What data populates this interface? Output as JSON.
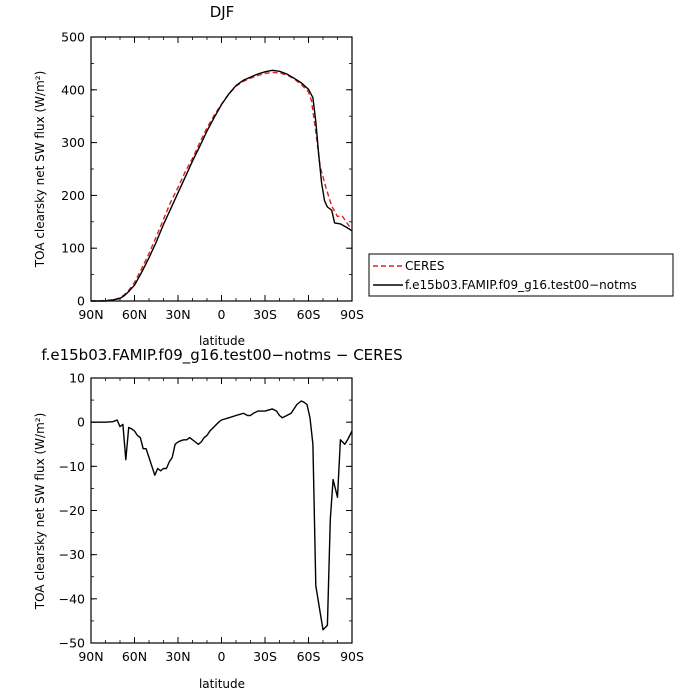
{
  "chart_data": [
    {
      "type": "line",
      "title": "DJF",
      "xlabel": "latitude",
      "ylabel": "TOA clearsky net SW flux (W/m²)",
      "x_tick_labels": [
        "90N",
        "60N",
        "30N",
        "0",
        "30S",
        "60S",
        "90S"
      ],
      "x_tick_values": [
        90,
        60,
        30,
        0,
        -30,
        -60,
        -90
      ],
      "y_ticks": [
        0,
        100,
        200,
        300,
        400,
        500
      ],
      "xlim": [
        90,
        -90
      ],
      "ylim": [
        0,
        500
      ],
      "legend": {
        "placement": "right-outside"
      },
      "series": [
        {
          "name": "CERES",
          "color": "#e02020",
          "dash": "dashed",
          "points": [
            [
              90,
              0
            ],
            [
              85,
              0
            ],
            [
              80,
              1
            ],
            [
              75,
              2
            ],
            [
              70,
              6
            ],
            [
              67,
              12
            ],
            [
              64,
              20
            ],
            [
              60,
              35
            ],
            [
              55,
              62
            ],
            [
              50,
              90
            ],
            [
              45,
              122
            ],
            [
              40,
              155
            ],
            [
              35,
              188
            ],
            [
              30,
              215
            ],
            [
              25,
              245
            ],
            [
              20,
              270
            ],
            [
              15,
              300
            ],
            [
              10,
              328
            ],
            [
              5,
              352
            ],
            [
              0,
              373
            ],
            [
              -5,
              392
            ],
            [
              -10,
              407
            ],
            [
              -15,
              416
            ],
            [
              -20,
              422
            ],
            [
              -25,
              427
            ],
            [
              -30,
              431
            ],
            [
              -35,
              433
            ],
            [
              -40,
              432
            ],
            [
              -45,
              428
            ],
            [
              -50,
              421
            ],
            [
              -55,
              410
            ],
            [
              -60,
              396
            ],
            [
              -62,
              380
            ],
            [
              -65,
              320
            ],
            [
              -68,
              255
            ],
            [
              -72,
              215
            ],
            [
              -76,
              180
            ],
            [
              -80,
              160
            ],
            [
              -83,
              162
            ],
            [
              -86,
              150
            ],
            [
              -88,
              142
            ],
            [
              -90,
              135
            ]
          ]
        },
        {
          "name": "f.e15b03.FAMIP.f09_g16.test00−notms",
          "color": "#000000",
          "dash": "solid",
          "points": [
            [
              90,
              0
            ],
            [
              85,
              0
            ],
            [
              80,
              0
            ],
            [
              75,
              2
            ],
            [
              70,
              5
            ],
            [
              67,
              10
            ],
            [
              64,
              18
            ],
            [
              60,
              30
            ],
            [
              55,
              55
            ],
            [
              50,
              82
            ],
            [
              45,
              112
            ],
            [
              40,
              145
            ],
            [
              35,
              175
            ],
            [
              30,
              205
            ],
            [
              25,
              235
            ],
            [
              20,
              265
            ],
            [
              15,
              293
            ],
            [
              10,
              322
            ],
            [
              5,
              348
            ],
            [
              0,
              372
            ],
            [
              -5,
              392
            ],
            [
              -10,
              408
            ],
            [
              -15,
              418
            ],
            [
              -20,
              424
            ],
            [
              -25,
              430
            ],
            [
              -30,
              434
            ],
            [
              -35,
              437
            ],
            [
              -40,
              435
            ],
            [
              -45,
              430
            ],
            [
              -50,
              422
            ],
            [
              -55,
              413
            ],
            [
              -60,
              401
            ],
            [
              -63,
              385
            ],
            [
              -65,
              340
            ],
            [
              -67,
              280
            ],
            [
              -69,
              225
            ],
            [
              -71,
              190
            ],
            [
              -73,
              178
            ],
            [
              -76,
              172
            ],
            [
              -78,
              148
            ],
            [
              -82,
              146
            ],
            [
              -86,
              140
            ],
            [
              -90,
              133
            ]
          ]
        }
      ]
    },
    {
      "type": "line",
      "title": "f.e15b03.FAMIP.f09_g16.test00−notms − CERES",
      "xlabel": "latitude",
      "ylabel": "TOA clearsky net SW flux (W/m²)",
      "x_tick_labels": [
        "90N",
        "60N",
        "30N",
        "0",
        "30S",
        "60S",
        "90S"
      ],
      "x_tick_values": [
        90,
        60,
        30,
        0,
        -30,
        -60,
        -90
      ],
      "y_ticks": [
        10,
        0,
        -10,
        -20,
        -30,
        -40,
        -50
      ],
      "xlim": [
        90,
        -90
      ],
      "ylim": [
        -50,
        10
      ],
      "series": [
        {
          "color": "#000000",
          "dash": "solid",
          "points": [
            [
              90,
              0
            ],
            [
              85,
              0
            ],
            [
              80,
              0
            ],
            [
              75,
              0.1
            ],
            [
              72,
              0.5
            ],
            [
              70,
              -1
            ],
            [
              68,
              -0.5
            ],
            [
              66,
              -8.5
            ],
            [
              64,
              -1.2
            ],
            [
              62,
              -1.5
            ],
            [
              60,
              -2
            ],
            [
              58,
              -3
            ],
            [
              56,
              -3.5
            ],
            [
              54,
              -6
            ],
            [
              52,
              -6
            ],
            [
              50,
              -8
            ],
            [
              48,
              -10
            ],
            [
              46,
              -12
            ],
            [
              44,
              -10.5
            ],
            [
              42,
              -11
            ],
            [
              40,
              -10.5
            ],
            [
              38,
              -10.5
            ],
            [
              36,
              -9
            ],
            [
              34,
              -8
            ],
            [
              32,
              -5
            ],
            [
              30,
              -4.5
            ],
            [
              28,
              -4.2
            ],
            [
              26,
              -4
            ],
            [
              24,
              -4
            ],
            [
              22,
              -3.5
            ],
            [
              20,
              -4
            ],
            [
              18,
              -4.5
            ],
            [
              16,
              -5
            ],
            [
              14,
              -4.5
            ],
            [
              12,
              -3.5
            ],
            [
              10,
              -3
            ],
            [
              8,
              -2
            ],
            [
              5,
              -1
            ],
            [
              2,
              0
            ],
            [
              0,
              0.5
            ],
            [
              -5,
              1
            ],
            [
              -10,
              1.5
            ],
            [
              -15,
              2
            ],
            [
              -18,
              1.5
            ],
            [
              -20,
              1.5
            ],
            [
              -22,
              2
            ],
            [
              -25,
              2.5
            ],
            [
              -30,
              2.5
            ],
            [
              -35,
              3
            ],
            [
              -38,
              2.5
            ],
            [
              -40,
              1.5
            ],
            [
              -42,
              1
            ],
            [
              -45,
              1.5
            ],
            [
              -48,
              2
            ],
            [
              -50,
              3
            ],
            [
              -52,
              4
            ],
            [
              -55,
              4.8
            ],
            [
              -57,
              4.5
            ],
            [
              -59,
              4
            ],
            [
              -61,
              1
            ],
            [
              -63,
              -5
            ],
            [
              -65,
              -37
            ],
            [
              -68,
              -43
            ],
            [
              -70,
              -47
            ],
            [
              -73,
              -46
            ],
            [
              -75,
              -22
            ],
            [
              -77,
              -13
            ],
            [
              -80,
              -17
            ],
            [
              -82,
              -4
            ],
            [
              -85,
              -5
            ],
            [
              -87,
              -4
            ],
            [
              -90,
              -2
            ]
          ]
        }
      ]
    }
  ]
}
